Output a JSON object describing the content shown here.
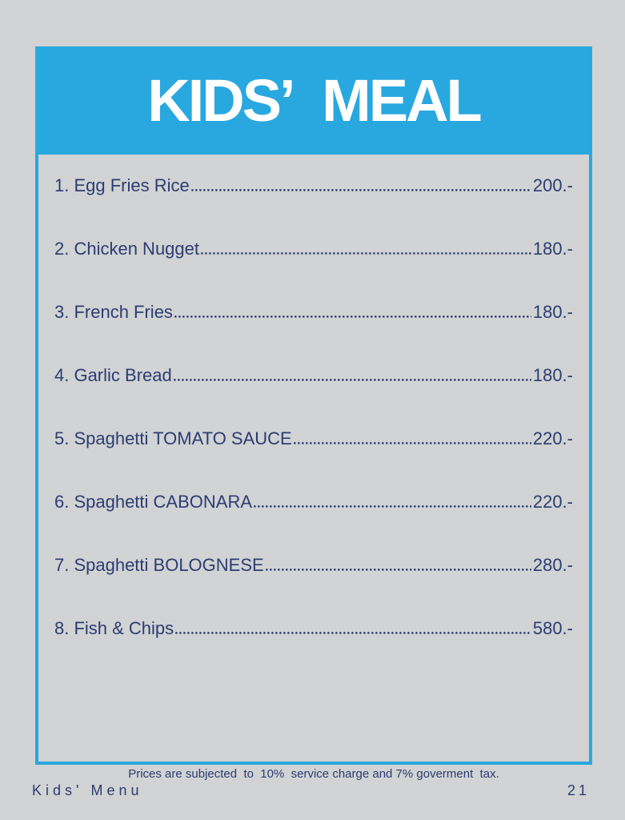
{
  "colors": {
    "background": "#d1d3d4",
    "accent_blue": "#29a8df",
    "text_navy": "#2d3c72",
    "title_white": "#ffffff"
  },
  "header": {
    "title": "KIDS’ MEAL"
  },
  "menu": {
    "items": [
      {
        "label": "1. Egg Fries Rice",
        "price": "200.-"
      },
      {
        "label": "2. Chicken Nugget",
        "price": "180.-"
      },
      {
        "label": "3. French Fries",
        "price": "180.-"
      },
      {
        "label": "4. Garlic Bread",
        "price": "180.-"
      },
      {
        "label": "5. Spaghetti TOMATO SAUCE",
        "price": "220.-"
      },
      {
        "label": "6. Spaghetti CABONARA",
        "price": "220.-"
      },
      {
        "label": "7. Spaghetti BOLOGNESE",
        "price": "280.-"
      },
      {
        "label": "8. Fish & Chips",
        "price": "580.-"
      }
    ]
  },
  "footer": {
    "notice": "Prices are subjected  to  10%  service charge and 7% goverment  tax.",
    "page_label": "Kids' Menu",
    "page_number": "21"
  }
}
